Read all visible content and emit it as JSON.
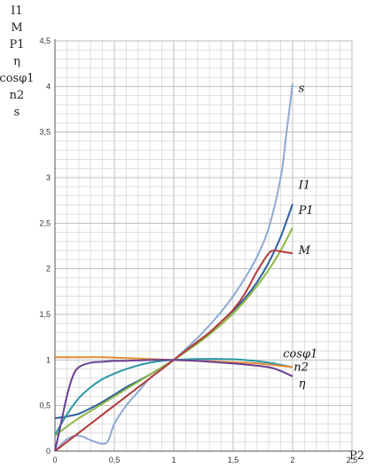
{
  "chart_data": {
    "type": "line",
    "title": "",
    "xlabel": "P2",
    "ylabel_lines": [
      "I1",
      "M",
      "P1",
      "η",
      "cosφ1",
      "n2",
      "s"
    ],
    "xlim": [
      0,
      2.5
    ],
    "ylim": [
      0,
      4.5
    ],
    "xticks": [
      0,
      0.5,
      1,
      1.5,
      2,
      2.5
    ],
    "xtick_labels": [
      "0",
      "0,5",
      "1",
      "1,5",
      "2",
      "2,5"
    ],
    "yticks": [
      0,
      0.5,
      1,
      1.5,
      2,
      2.5,
      3,
      3.5,
      4,
      4.5
    ],
    "ytick_labels": [
      "0",
      "0,5",
      "1",
      "1,5",
      "2",
      "2,5",
      "3",
      "3,5",
      "4",
      "4,5"
    ],
    "grid": true,
    "series": [
      {
        "name": "s",
        "color": "#8ea9d4",
        "label_at": [
          2.05,
          3.94
        ],
        "points": [
          [
            0,
            0
          ],
          [
            0.1,
            0.13
          ],
          [
            0.2,
            0.17
          ],
          [
            0.3,
            0.12
          ],
          [
            0.4,
            0.08
          ],
          [
            0.45,
            0.12
          ],
          [
            0.5,
            0.3
          ],
          [
            0.6,
            0.5
          ],
          [
            0.7,
            0.65
          ],
          [
            0.8,
            0.8
          ],
          [
            0.9,
            0.9
          ],
          [
            1,
            1
          ],
          [
            1.1,
            1.12
          ],
          [
            1.2,
            1.24
          ],
          [
            1.3,
            1.38
          ],
          [
            1.4,
            1.53
          ],
          [
            1.5,
            1.7
          ],
          [
            1.6,
            1.9
          ],
          [
            1.7,
            2.13
          ],
          [
            1.8,
            2.45
          ],
          [
            1.9,
            3.0
          ],
          [
            1.95,
            3.5
          ],
          [
            2,
            4.03
          ]
        ]
      },
      {
        "name": "I1",
        "color": "#2e5f9e",
        "label_at": [
          2.05,
          2.88
        ],
        "points": [
          [
            0,
            0.36
          ],
          [
            0.1,
            0.38
          ],
          [
            0.2,
            0.41
          ],
          [
            0.3,
            0.47
          ],
          [
            0.4,
            0.54
          ],
          [
            0.5,
            0.62
          ],
          [
            0.6,
            0.7
          ],
          [
            0.7,
            0.77
          ],
          [
            0.8,
            0.84
          ],
          [
            0.9,
            0.92
          ],
          [
            1,
            1
          ],
          [
            1.1,
            1.1
          ],
          [
            1.2,
            1.2
          ],
          [
            1.3,
            1.3
          ],
          [
            1.4,
            1.42
          ],
          [
            1.5,
            1.54
          ],
          [
            1.6,
            1.68
          ],
          [
            1.7,
            1.85
          ],
          [
            1.8,
            2.07
          ],
          [
            1.9,
            2.35
          ],
          [
            2,
            2.71
          ]
        ]
      },
      {
        "name": "P1",
        "color": "#8db843",
        "label_at": [
          2.05,
          2.6
        ],
        "points": [
          [
            0,
            0.17
          ],
          [
            0.1,
            0.27
          ],
          [
            0.2,
            0.36
          ],
          [
            0.3,
            0.44
          ],
          [
            0.4,
            0.52
          ],
          [
            0.5,
            0.6
          ],
          [
            0.6,
            0.68
          ],
          [
            0.7,
            0.76
          ],
          [
            0.8,
            0.84
          ],
          [
            0.9,
            0.92
          ],
          [
            1,
            1
          ],
          [
            1.1,
            1.09
          ],
          [
            1.2,
            1.18
          ],
          [
            1.3,
            1.28
          ],
          [
            1.4,
            1.39
          ],
          [
            1.5,
            1.51
          ],
          [
            1.6,
            1.65
          ],
          [
            1.7,
            1.81
          ],
          [
            1.8,
            1.99
          ],
          [
            1.9,
            2.2
          ],
          [
            2,
            2.45
          ]
        ]
      },
      {
        "name": "M",
        "color": "#b23a3a",
        "label_at": [
          2.05,
          2.16
        ],
        "points": [
          [
            0,
            0
          ],
          [
            0.1,
            0.1
          ],
          [
            0.2,
            0.2
          ],
          [
            0.3,
            0.3
          ],
          [
            0.4,
            0.4
          ],
          [
            0.5,
            0.5
          ],
          [
            0.6,
            0.6
          ],
          [
            0.7,
            0.7
          ],
          [
            0.8,
            0.8
          ],
          [
            0.9,
            0.9
          ],
          [
            1,
            1
          ],
          [
            1.1,
            1.1
          ],
          [
            1.2,
            1.2
          ],
          [
            1.3,
            1.3
          ],
          [
            1.4,
            1.42
          ],
          [
            1.5,
            1.55
          ],
          [
            1.6,
            1.73
          ],
          [
            1.7,
            1.97
          ],
          [
            1.8,
            2.17
          ],
          [
            1.85,
            2.2
          ],
          [
            1.9,
            2.19
          ],
          [
            2,
            2.17
          ]
        ]
      },
      {
        "name": "cosφ1",
        "color": "#2c97a5",
        "label_at": [
          1.92,
          1.03
        ],
        "points": [
          [
            0,
            0.18
          ],
          [
            0.1,
            0.4
          ],
          [
            0.2,
            0.58
          ],
          [
            0.3,
            0.7
          ],
          [
            0.4,
            0.79
          ],
          [
            0.5,
            0.85
          ],
          [
            0.6,
            0.9
          ],
          [
            0.7,
            0.94
          ],
          [
            0.8,
            0.97
          ],
          [
            0.9,
            0.99
          ],
          [
            1,
            1
          ],
          [
            1.2,
            1.01
          ],
          [
            1.4,
            1.01
          ],
          [
            1.6,
            1.0
          ],
          [
            1.8,
            0.97
          ],
          [
            2,
            0.92
          ]
        ]
      },
      {
        "name": "n2",
        "color": "#e38a36",
        "label_at": [
          2.01,
          0.88
        ],
        "points": [
          [
            0,
            1.03
          ],
          [
            0.2,
            1.03
          ],
          [
            0.4,
            1.03
          ],
          [
            0.6,
            1.02
          ],
          [
            0.8,
            1.01
          ],
          [
            1,
            1
          ],
          [
            1.2,
            0.99
          ],
          [
            1.4,
            0.98
          ],
          [
            1.6,
            0.97
          ],
          [
            1.8,
            0.95
          ],
          [
            2,
            0.92
          ]
        ]
      },
      {
        "name": "η",
        "color": "#6a3f93",
        "label_at": [
          2.05,
          0.7
        ],
        "points": [
          [
            0,
            0
          ],
          [
            0.05,
            0.3
          ],
          [
            0.1,
            0.6
          ],
          [
            0.15,
            0.82
          ],
          [
            0.2,
            0.92
          ],
          [
            0.3,
            0.97
          ],
          [
            0.4,
            0.98
          ],
          [
            0.5,
            0.99
          ],
          [
            0.6,
            0.99
          ],
          [
            0.8,
            1.0
          ],
          [
            1,
            1
          ],
          [
            1.2,
            0.99
          ],
          [
            1.4,
            0.97
          ],
          [
            1.6,
            0.95
          ],
          [
            1.8,
            0.92
          ],
          [
            1.9,
            0.88
          ],
          [
            2,
            0.82
          ]
        ]
      }
    ]
  }
}
